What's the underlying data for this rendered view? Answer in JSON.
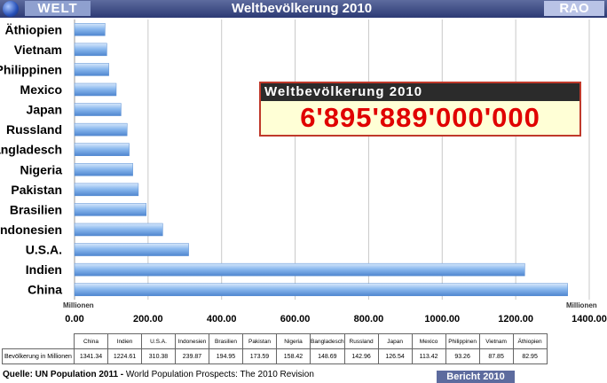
{
  "header": {
    "left_tag": "WELT",
    "title": "Weltbevölkerung  2010",
    "right_tag": "RAO",
    "globe_icon": "globe-icon"
  },
  "infobox": {
    "title": "Weltbevölkerung 2010",
    "value": "6'895'889'000'000"
  },
  "chart_data": {
    "type": "bar",
    "orientation": "horizontal",
    "categories": [
      "China",
      "Indien",
      "U.S.A.",
      "Indonesien",
      "Brasilien",
      "Pakistan",
      "Nigeria",
      "Bangladesch",
      "Russland",
      "Japan",
      "Mexico",
      "Philippinen",
      "Vietnam",
      "Äthiopien"
    ],
    "values": [
      1341.34,
      1224.61,
      310.38,
      239.87,
      194.95,
      173.59,
      158.42,
      148.69,
      142.96,
      126.54,
      113.42,
      93.26,
      87.85,
      82.95
    ],
    "xlim": [
      0,
      1400
    ],
    "xticks": [
      0,
      200,
      400,
      600,
      800,
      1000,
      1200,
      1400
    ],
    "xtick_labels": [
      "0.00",
      "200.00",
      "400.00",
      "600.00",
      "800.00",
      "1000.00",
      "1200.00",
      "1400.00"
    ],
    "unit_label": "Millionen",
    "grid": true,
    "bar_color": "#7fb0ea"
  },
  "table": {
    "row_label": "Bevölkerung in Millionen",
    "headers": [
      "China",
      "Indien",
      "U.S.A.",
      "Indonesien",
      "Brasilien",
      "Pakistan",
      "Nigeria",
      "Bangladesch",
      "Russland",
      "Japan",
      "Mexico",
      "Philippinen",
      "Vietnam",
      "Äthiopien"
    ],
    "values": [
      "1341.34",
      "1224.61",
      "310.38",
      "239.87",
      "194.95",
      "173.59",
      "158.42",
      "148.69",
      "142.96",
      "126.54",
      "113.42",
      "93.26",
      "87.85",
      "82.95"
    ]
  },
  "footer": {
    "source_bold": "Quelle: UN Population 2011 -",
    "source_rest": " World Population Prospects: The 2010 Revision",
    "report": "Bericht 2010"
  }
}
